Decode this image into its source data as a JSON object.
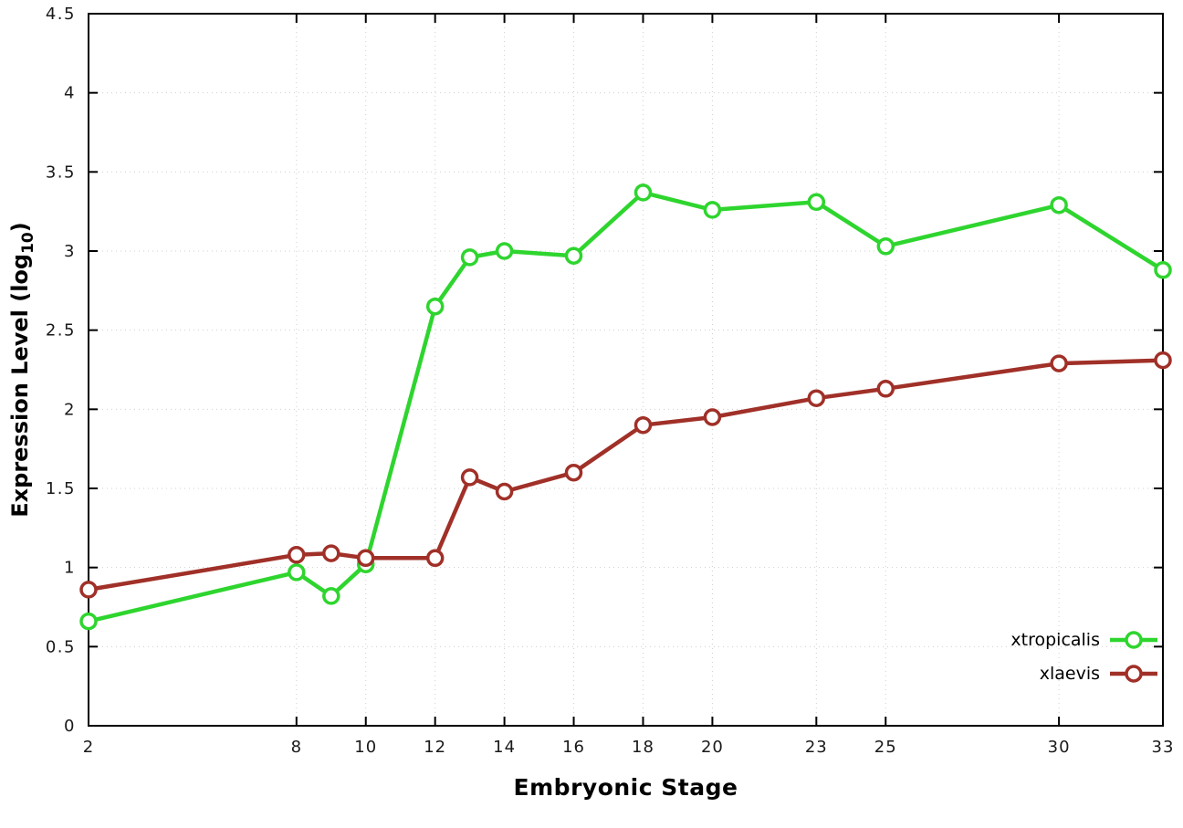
{
  "chart_data": {
    "type": "line",
    "title": "",
    "xlabel": "Embryonic Stage",
    "ylabel_parts": {
      "main": "Expression Level (log",
      "sub": "10",
      "end": ")"
    },
    "x": [
      2,
      8,
      9,
      10,
      12,
      13,
      14,
      16,
      18,
      20,
      23,
      25,
      30,
      33
    ],
    "series": [
      {
        "name": "xtropicalis",
        "color": "#2ed52e",
        "values": [
          0.66,
          0.97,
          0.82,
          1.02,
          2.65,
          2.96,
          3.0,
          2.97,
          3.37,
          3.26,
          3.31,
          3.03,
          3.29,
          2.88
        ]
      },
      {
        "name": "xlaevis",
        "color": "#a03028",
        "values": [
          0.86,
          1.08,
          1.09,
          1.06,
          1.06,
          1.57,
          1.48,
          1.6,
          1.9,
          1.95,
          2.07,
          2.13,
          2.29,
          2.31
        ]
      }
    ],
    "xlim": [
      2,
      33
    ],
    "ylim": [
      0,
      4.5
    ],
    "xticks": [
      2,
      8,
      10,
      12,
      14,
      16,
      18,
      20,
      23,
      25,
      30,
      33
    ],
    "yticks": [
      0,
      0.5,
      1,
      1.5,
      2,
      2.5,
      3,
      3.5,
      4,
      4.5
    ],
    "grid": true,
    "legend_position": "bottom-right",
    "marker": "open-circle",
    "colors": {
      "axis": "#000000",
      "grid": "#cfcfcf",
      "tick_text": "#1a1a1a"
    }
  }
}
